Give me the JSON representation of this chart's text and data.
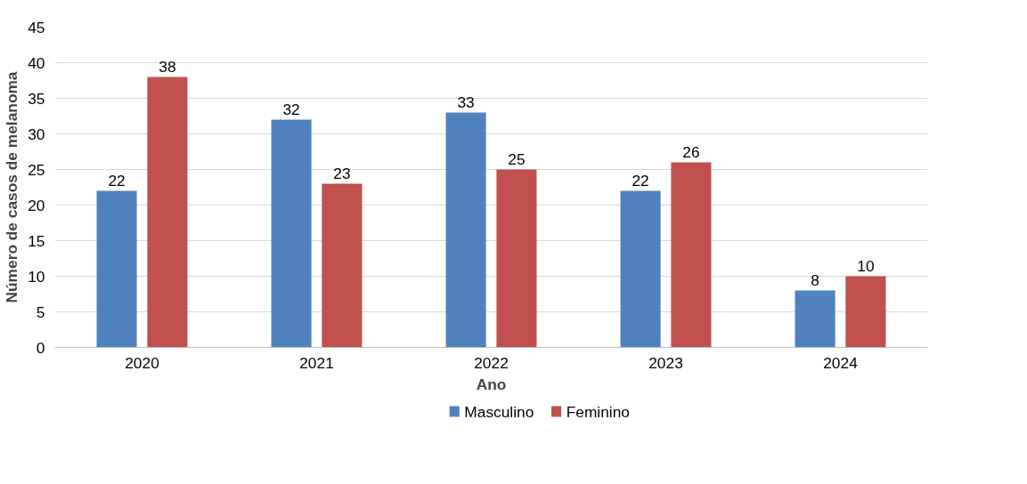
{
  "chart_data": {
    "type": "bar",
    "xlabel": "Ano",
    "ylabel": "Número de casos de melanoma",
    "categories": [
      "2020",
      "2021",
      "2022",
      "2023",
      "2024"
    ],
    "series": [
      {
        "name": "Masculino",
        "color": "#4f81bd",
        "values": [
          22,
          32,
          33,
          22,
          8
        ]
      },
      {
        "name": "Feminino",
        "color": "#c0504d",
        "values": [
          38,
          23,
          25,
          26,
          10
        ]
      }
    ],
    "ylim": [
      0,
      45
    ],
    "yticks": [
      0,
      5,
      10,
      15,
      20,
      25,
      30,
      35,
      40,
      45
    ],
    "grid": "y",
    "legend": "bottom",
    "data_labels": true
  }
}
